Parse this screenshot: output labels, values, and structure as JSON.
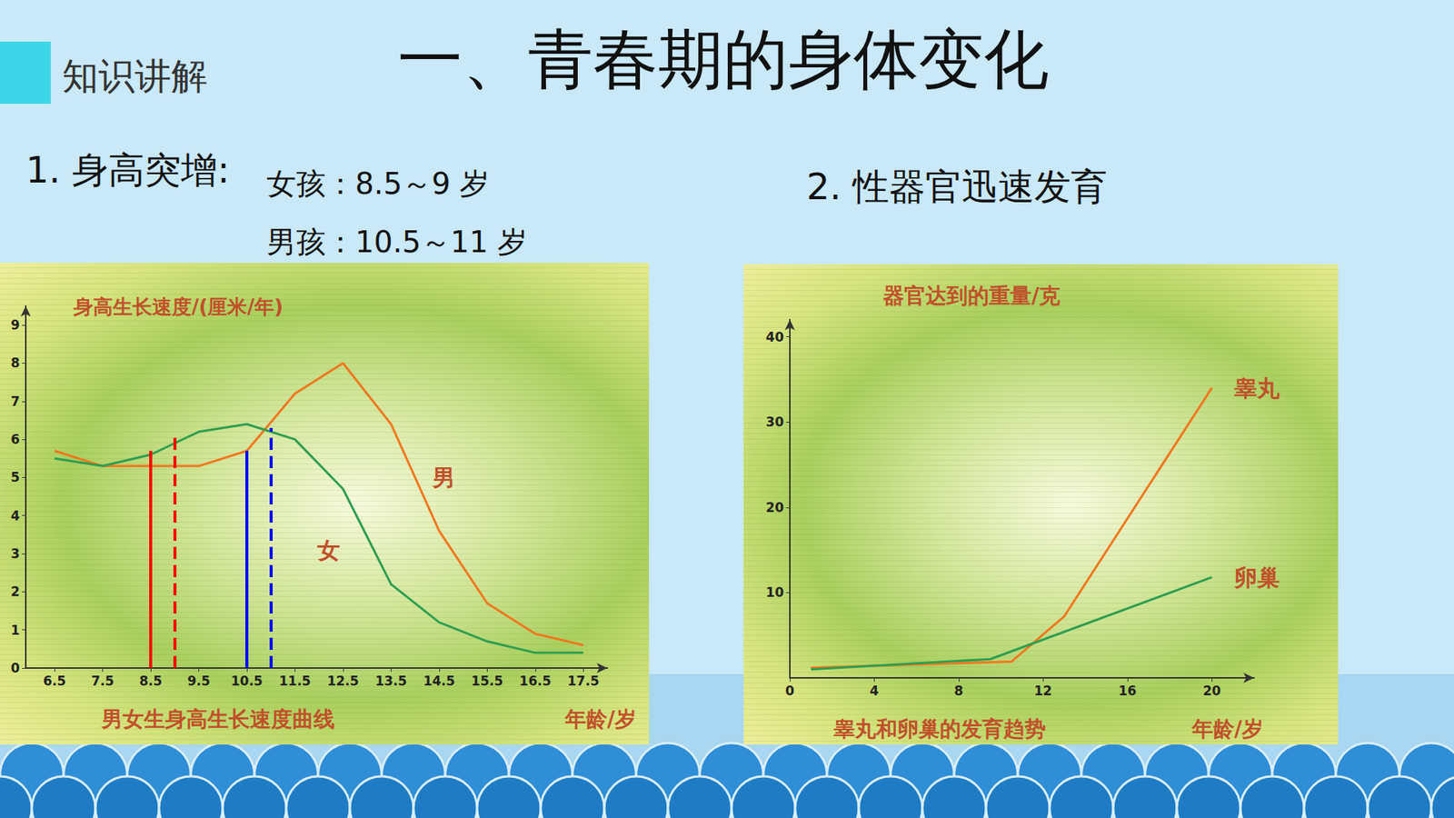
{
  "slide": {
    "section_label": "知识讲解",
    "title": "一、青春期的身体变化",
    "point_1": "1. 身高突增:",
    "point_1_girls": "女孩：8.5～9 岁",
    "point_1_boys": "男孩：10.5～11 岁",
    "point_2": "2. 性器官迅速发育"
  },
  "chart_data": [
    {
      "type": "line",
      "title": "身高生长速度/(厘米/年)",
      "caption": "男女生身高生长速度曲线",
      "x_label": "年龄/岁",
      "x": [
        6.5,
        7.5,
        8.5,
        9.5,
        10.5,
        11.5,
        12.5,
        13.5,
        14.5,
        15.5,
        16.5,
        17.5
      ],
      "xlim": [
        5.9,
        18
      ],
      "xticks": [
        6.5,
        7.5,
        8.5,
        9.5,
        10.5,
        11.5,
        12.5,
        13.5,
        14.5,
        15.5,
        16.5,
        17.5
      ],
      "ylim": [
        0,
        9.5
      ],
      "yticks": [
        0,
        1,
        2,
        3,
        4,
        5,
        6,
        7,
        8,
        9
      ],
      "grid": false,
      "series": [
        {
          "name": "男",
          "color": "#f07820",
          "label_position": [
            14.6,
            5.0
          ],
          "values": [
            5.7,
            5.3,
            5.3,
            5.3,
            5.7,
            7.2,
            8.0,
            6.4,
            3.6,
            1.7,
            0.9,
            0.6
          ]
        },
        {
          "name": "女",
          "color": "#2e9e50",
          "label_position": [
            12.2,
            3.1
          ],
          "values": [
            5.5,
            5.3,
            5.6,
            6.2,
            6.4,
            6.0,
            4.7,
            2.2,
            1.2,
            0.7,
            0.4,
            0.4
          ]
        }
      ],
      "markers": [
        {
          "x": 8.5,
          "y": 5.7,
          "color": "#ff0000",
          "line_style": "solid"
        },
        {
          "x": 9.0,
          "y": 6.1,
          "color": "#ff0000",
          "line_style": "dashed"
        },
        {
          "x": 10.5,
          "y": 5.7,
          "color": "#0000ff",
          "line_style": "solid"
        },
        {
          "x": 11.0,
          "y": 6.3,
          "color": "#0000ff",
          "line_style": "dashed"
        }
      ]
    },
    {
      "type": "line",
      "title": "器官达到的重量/克",
      "caption": "睾丸和卵巢的发育趋势",
      "x_label": "年龄/岁",
      "xlim": [
        0,
        22
      ],
      "xticks": [
        0,
        4,
        8,
        12,
        16,
        20
      ],
      "ylim": [
        0,
        42
      ],
      "yticks": [
        10,
        20,
        30,
        40
      ],
      "grid": false,
      "series": [
        {
          "name": "睾丸",
          "color": "#f07820",
          "x": [
            1,
            10.5,
            13,
            20
          ],
          "values": [
            1.2,
            1.9,
            7.2,
            34
          ]
        },
        {
          "name": "卵巢",
          "color": "#2e9e50",
          "x": [
            1,
            9.5,
            20
          ],
          "values": [
            1.0,
            2.2,
            11.8
          ]
        }
      ]
    }
  ]
}
